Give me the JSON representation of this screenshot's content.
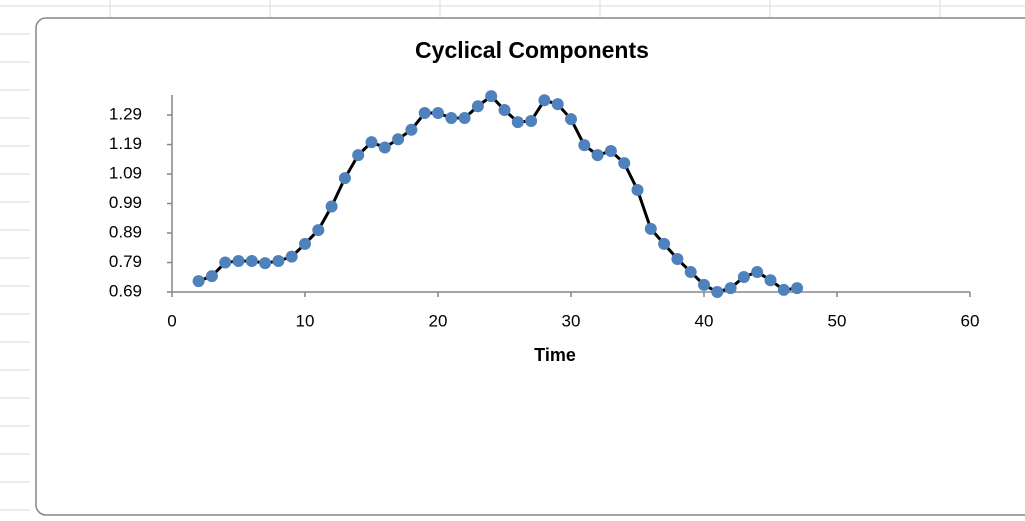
{
  "chart_data": {
    "type": "line",
    "title": "Cyclical  Components",
    "x_label": "Time",
    "x": [
      2,
      3,
      4,
      5,
      6,
      7,
      8,
      9,
      10,
      11,
      12,
      13,
      14,
      15,
      16,
      17,
      18,
      19,
      20,
      21,
      22,
      23,
      24,
      25,
      26,
      27,
      28,
      29,
      30,
      31,
      32,
      33,
      34,
      35,
      36,
      37,
      38,
      39,
      40,
      41,
      42,
      43,
      44,
      45,
      46,
      47
    ],
    "series": [
      {
        "color": "#4f81bd",
        "line_color": "#000000",
        "values": [
          0.727,
          0.744,
          0.79,
          0.795,
          0.795,
          0.788,
          0.795,
          0.81,
          0.853,
          0.9,
          0.98,
          1.076,
          1.154,
          1.198,
          1.18,
          1.208,
          1.24,
          1.297,
          1.297,
          1.28,
          1.28,
          1.32,
          1.354,
          1.307,
          1.266,
          1.27,
          1.34,
          1.327,
          1.276,
          1.188,
          1.154,
          1.168,
          1.127,
          1.036,
          0.904,
          0.853,
          0.802,
          0.758,
          0.714,
          0.69,
          0.703,
          0.741,
          0.758,
          0.73,
          0.697,
          0.703
        ]
      }
    ],
    "xlim": [
      0,
      60
    ],
    "xticks": [
      0,
      10,
      20,
      30,
      40,
      50,
      60
    ],
    "ylim": [
      0.69,
      1.358
    ],
    "yticks": [
      0.69,
      0.79,
      0.89,
      0.99,
      1.09,
      1.19,
      1.29
    ]
  }
}
